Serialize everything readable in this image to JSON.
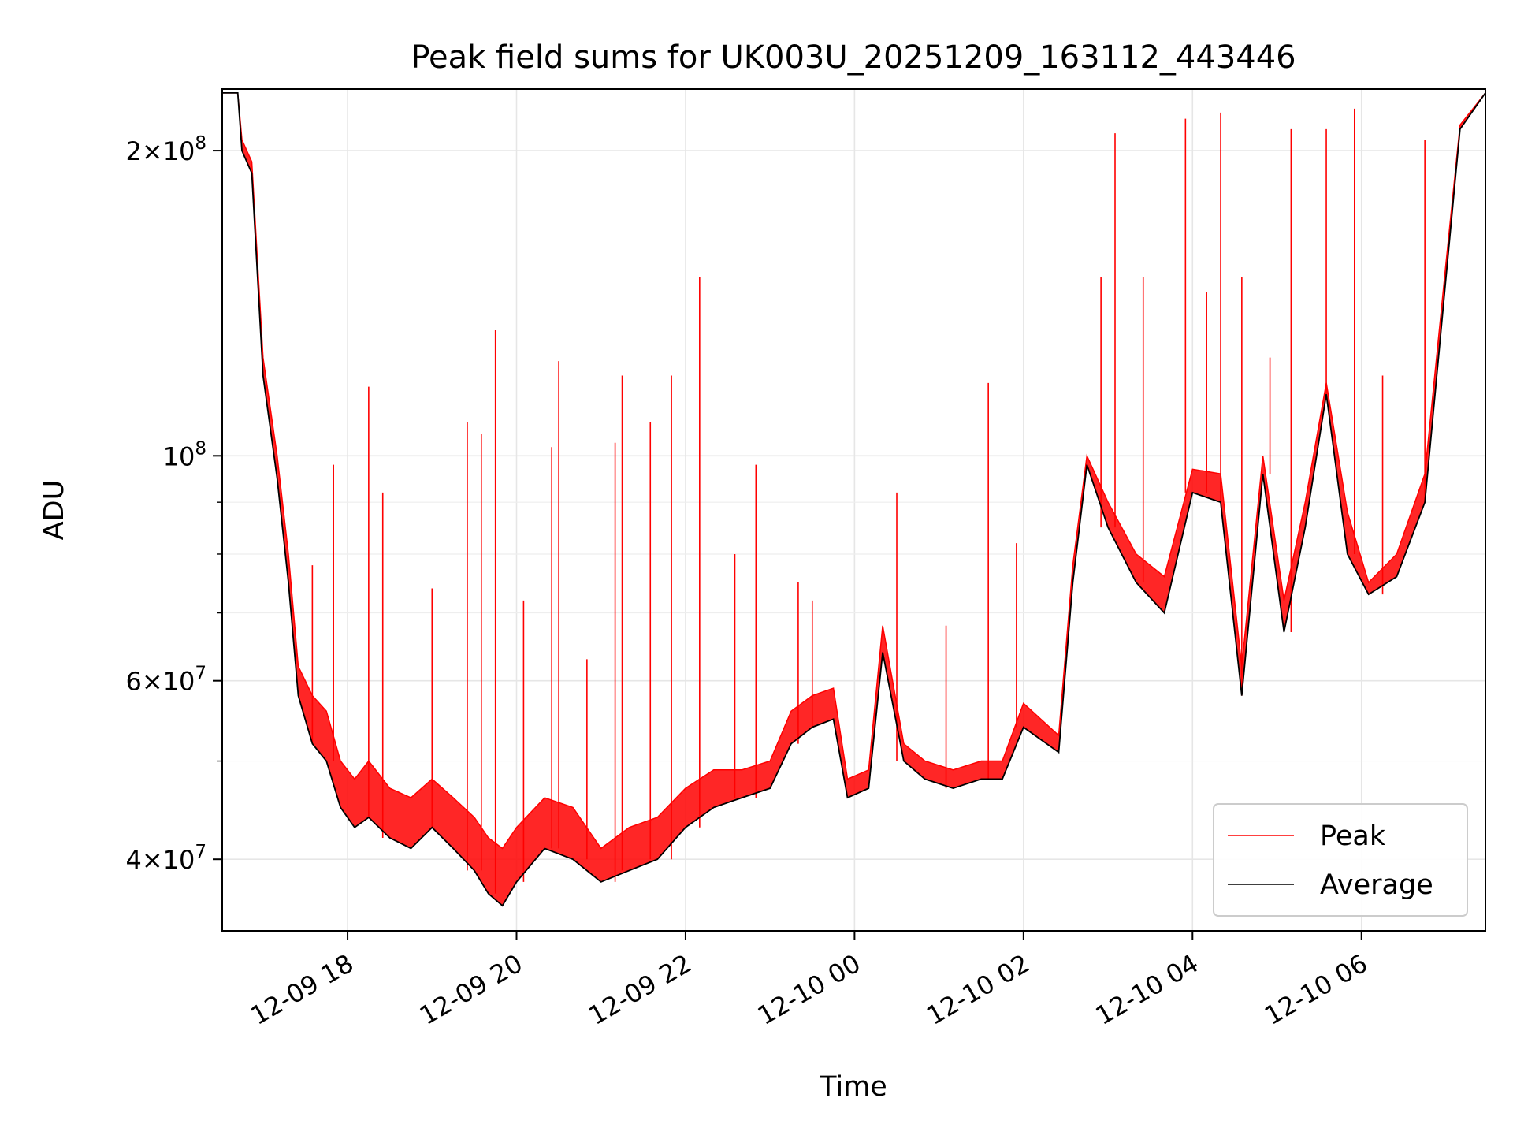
{
  "chart_data": {
    "type": "line",
    "title": "Peak field sums for UK003U_20251209_163112_443446",
    "xlabel": "Time",
    "ylabel": "ADU",
    "y_scale": "log",
    "xlim": [
      "2025-12-09 16:31",
      "2025-12-10 07:28"
    ],
    "ylim": [
      34000000,
      230000000
    ],
    "grid": true,
    "legend_position": "lower-right",
    "x_ticks": [
      {
        "value": "2025-12-09 18:00",
        "label": "12-09 18"
      },
      {
        "value": "2025-12-09 20:00",
        "label": "12-09 20"
      },
      {
        "value": "2025-12-09 22:00",
        "label": "12-09 22"
      },
      {
        "value": "2025-12-10 00:00",
        "label": "12-10 00"
      },
      {
        "value": "2025-12-10 02:00",
        "label": "12-10 02"
      },
      {
        "value": "2025-12-10 04:00",
        "label": "12-10 04"
      },
      {
        "value": "2025-12-10 06:00",
        "label": "12-10 06"
      }
    ],
    "y_ticks_major": [
      {
        "value": 40000000,
        "mant": "4",
        "exp": "7"
      },
      {
        "value": 60000000,
        "mant": "6",
        "exp": "7"
      },
      {
        "value": 100000000,
        "mant": "",
        "exp": "8"
      },
      {
        "value": 200000000,
        "mant": "2",
        "exp": "8"
      }
    ],
    "y_ticks_minor": [
      50000000,
      70000000,
      80000000,
      90000000
    ],
    "colors": {
      "Peak": "#ff0000",
      "Average": "#000000"
    },
    "series": [
      {
        "name": "Average",
        "x": [
          "2025-12-09 16:31",
          "2025-12-09 16:42",
          "2025-12-09 16:45",
          "2025-12-09 16:52",
          "2025-12-09 17:00",
          "2025-12-09 17:10",
          "2025-12-09 17:18",
          "2025-12-09 17:25",
          "2025-12-09 17:35",
          "2025-12-09 17:45",
          "2025-12-09 17:55",
          "2025-12-09 18:05",
          "2025-12-09 18:15",
          "2025-12-09 18:30",
          "2025-12-09 18:45",
          "2025-12-09 19:00",
          "2025-12-09 19:15",
          "2025-12-09 19:30",
          "2025-12-09 19:40",
          "2025-12-09 19:50",
          "2025-12-09 20:00",
          "2025-12-09 20:20",
          "2025-12-09 20:40",
          "2025-12-09 21:00",
          "2025-12-09 21:20",
          "2025-12-09 21:40",
          "2025-12-09 22:00",
          "2025-12-09 22:20",
          "2025-12-09 22:40",
          "2025-12-09 23:00",
          "2025-12-09 23:15",
          "2025-12-09 23:30",
          "2025-12-09 23:45",
          "2025-12-09 23:55",
          "2025-12-10 00:10",
          "2025-12-10 00:20",
          "2025-12-10 00:35",
          "2025-12-10 00:50",
          "2025-12-10 01:10",
          "2025-12-10 01:30",
          "2025-12-10 01:45",
          "2025-12-10 02:00",
          "2025-12-10 02:25",
          "2025-12-10 02:35",
          "2025-12-10 02:45",
          "2025-12-10 03:00",
          "2025-12-10 03:20",
          "2025-12-10 03:40",
          "2025-12-10 04:00",
          "2025-12-10 04:20",
          "2025-12-10 04:35",
          "2025-12-10 04:50",
          "2025-12-10 05:05",
          "2025-12-10 05:20",
          "2025-12-10 05:35",
          "2025-12-10 05:50",
          "2025-12-10 06:05",
          "2025-12-10 06:25",
          "2025-12-10 06:45",
          "2025-12-10 07:00",
          "2025-12-10 07:10",
          "2025-12-10 07:28"
        ],
        "values": [
          228000000,
          228000000,
          200000000,
          190000000,
          120000000,
          95000000,
          75000000,
          58000000,
          52000000,
          50000000,
          45000000,
          43000000,
          44000000,
          42000000,
          41000000,
          43000000,
          41000000,
          39000000,
          37000000,
          36000000,
          38000000,
          41000000,
          40000000,
          38000000,
          39000000,
          40000000,
          43000000,
          45000000,
          46000000,
          47000000,
          52000000,
          54000000,
          55000000,
          46000000,
          47000000,
          64000000,
          50000000,
          48000000,
          47000000,
          48000000,
          48000000,
          54000000,
          51000000,
          75000000,
          98000000,
          85000000,
          75000000,
          70000000,
          92000000,
          90000000,
          58000000,
          96000000,
          67000000,
          85000000,
          115000000,
          80000000,
          73000000,
          76000000,
          90000000,
          150000000,
          210000000,
          228000000
        ]
      },
      {
        "name": "Peak",
        "x": [
          "2025-12-09 16:31",
          "2025-12-09 16:42",
          "2025-12-09 16:45",
          "2025-12-09 16:52",
          "2025-12-09 17:00",
          "2025-12-09 17:10",
          "2025-12-09 17:18",
          "2025-12-09 17:25",
          "2025-12-09 17:35",
          "2025-12-09 17:45",
          "2025-12-09 17:55",
          "2025-12-09 18:05",
          "2025-12-09 18:15",
          "2025-12-09 18:30",
          "2025-12-09 18:45",
          "2025-12-09 19:00",
          "2025-12-09 19:15",
          "2025-12-09 19:30",
          "2025-12-09 19:40",
          "2025-12-09 19:50",
          "2025-12-09 20:00",
          "2025-12-09 20:20",
          "2025-12-09 20:40",
          "2025-12-09 21:00",
          "2025-12-09 21:20",
          "2025-12-09 21:40",
          "2025-12-09 22:00",
          "2025-12-09 22:20",
          "2025-12-09 22:40",
          "2025-12-09 23:00",
          "2025-12-09 23:15",
          "2025-12-09 23:30",
          "2025-12-09 23:45",
          "2025-12-09 23:55",
          "2025-12-10 00:10",
          "2025-12-10 00:20",
          "2025-12-10 00:35",
          "2025-12-10 00:50",
          "2025-12-10 01:10",
          "2025-12-10 01:30",
          "2025-12-10 01:45",
          "2025-12-10 02:00",
          "2025-12-10 02:25",
          "2025-12-10 02:35",
          "2025-12-10 02:45",
          "2025-12-10 03:00",
          "2025-12-10 03:20",
          "2025-12-10 03:40",
          "2025-12-10 04:00",
          "2025-12-10 04:20",
          "2025-12-10 04:35",
          "2025-12-10 04:50",
          "2025-12-10 05:05",
          "2025-12-10 05:20",
          "2025-12-10 05:35",
          "2025-12-10 05:50",
          "2025-12-10 06:05",
          "2025-12-10 06:25",
          "2025-12-10 06:45",
          "2025-12-10 07:00",
          "2025-12-10 07:10",
          "2025-12-10 07:28"
        ],
        "values": [
          228000000,
          228000000,
          205000000,
          195000000,
          125000000,
          100000000,
          80000000,
          62000000,
          58000000,
          56000000,
          50000000,
          48000000,
          50000000,
          47000000,
          46000000,
          48000000,
          46000000,
          44000000,
          42000000,
          41000000,
          43000000,
          46000000,
          45000000,
          41000000,
          43000000,
          44000000,
          47000000,
          49000000,
          49000000,
          50000000,
          56000000,
          58000000,
          59000000,
          48000000,
          49000000,
          68000000,
          52000000,
          50000000,
          49000000,
          50000000,
          50000000,
          57000000,
          53000000,
          78000000,
          100000000,
          90000000,
          80000000,
          76000000,
          97000000,
          96000000,
          62000000,
          100000000,
          72000000,
          90000000,
          118000000,
          88000000,
          75000000,
          80000000,
          96000000,
          155000000,
          212000000,
          228000000
        ],
        "spikes": [
          [
            "2025-12-09 17:35",
            78000000
          ],
          [
            "2025-12-09 17:50",
            98000000
          ],
          [
            "2025-12-09 18:15",
            117000000
          ],
          [
            "2025-12-09 18:25",
            92000000
          ],
          [
            "2025-12-09 19:00",
            74000000
          ],
          [
            "2025-12-09 19:25",
            108000000
          ],
          [
            "2025-12-09 19:35",
            105000000
          ],
          [
            "2025-12-09 19:45",
            133000000
          ],
          [
            "2025-12-09 20:05",
            72000000
          ],
          [
            "2025-12-09 20:25",
            102000000
          ],
          [
            "2025-12-09 20:30",
            124000000
          ],
          [
            "2025-12-09 20:50",
            63000000
          ],
          [
            "2025-12-09 21:10",
            103000000
          ],
          [
            "2025-12-09 21:15",
            120000000
          ],
          [
            "2025-12-09 21:35",
            108000000
          ],
          [
            "2025-12-09 21:50",
            120000000
          ],
          [
            "2025-12-09 22:10",
            150000000
          ],
          [
            "2025-12-09 22:35",
            80000000
          ],
          [
            "2025-12-09 22:50",
            98000000
          ],
          [
            "2025-12-09 23:20",
            75000000
          ],
          [
            "2025-12-09 23:30",
            72000000
          ],
          [
            "2025-12-10 00:30",
            92000000
          ],
          [
            "2025-12-10 01:05",
            68000000
          ],
          [
            "2025-12-10 01:35",
            118000000
          ],
          [
            "2025-12-10 01:55",
            82000000
          ],
          [
            "2025-12-10 02:55",
            150000000
          ],
          [
            "2025-12-10 03:05",
            208000000
          ],
          [
            "2025-12-10 03:25",
            150000000
          ],
          [
            "2025-12-10 03:55",
            215000000
          ],
          [
            "2025-12-10 04:10",
            145000000
          ],
          [
            "2025-12-10 04:20",
            218000000
          ],
          [
            "2025-12-10 04:35",
            150000000
          ],
          [
            "2025-12-10 04:55",
            125000000
          ],
          [
            "2025-12-10 05:10",
            210000000
          ],
          [
            "2025-12-10 05:35",
            210000000
          ],
          [
            "2025-12-10 05:55",
            220000000
          ],
          [
            "2025-12-10 06:15",
            120000000
          ],
          [
            "2025-12-10 06:45",
            205000000
          ]
        ]
      }
    ]
  }
}
